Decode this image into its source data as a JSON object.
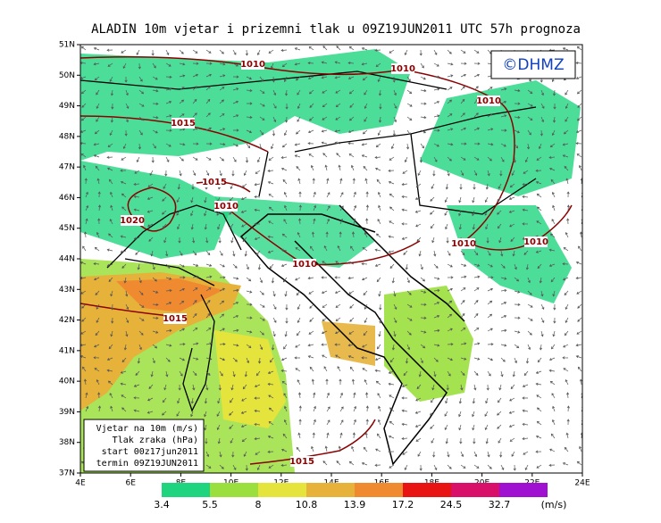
{
  "header": {
    "title": "ALADIN 10m vjetar i prizemni tlak u 09Z19JUN2011 UTC 57h prognoza",
    "logo": "©DHMZ"
  },
  "lat_labels": [
    "51N",
    "50N",
    "49N",
    "48N",
    "47N",
    "46N",
    "45N",
    "44N",
    "43N",
    "42N",
    "41N",
    "40N",
    "39N",
    "38N",
    "37N"
  ],
  "lon_labels": [
    "4E",
    "6E",
    "8E",
    "10E",
    "12E",
    "14E",
    "16E",
    "18E",
    "20E",
    "22E",
    "24E"
  ],
  "isobars": [
    "1010",
    "1010",
    "1010",
    "1010",
    "1010",
    "1010",
    "1010",
    "1015",
    "1015",
    "1015",
    "1015",
    "1020"
  ],
  "info_box": [
    "Vjetar na 10m (m/s)",
    "Tlak zraka (hPa)",
    "start 00z17jun2011",
    "termin 09Z19JUN2011"
  ],
  "colorbar": {
    "levels": [
      "3.4",
      "5.5",
      "8",
      "10.8",
      "13.9",
      "17.2",
      "24.5",
      "32.7"
    ],
    "colors": [
      "#1fd47f",
      "#9adf3d",
      "#e4e43c",
      "#e6b23a",
      "#f08a30",
      "#e81414",
      "#d8106a",
      "#a010d0"
    ],
    "unit": "(m/s)"
  }
}
